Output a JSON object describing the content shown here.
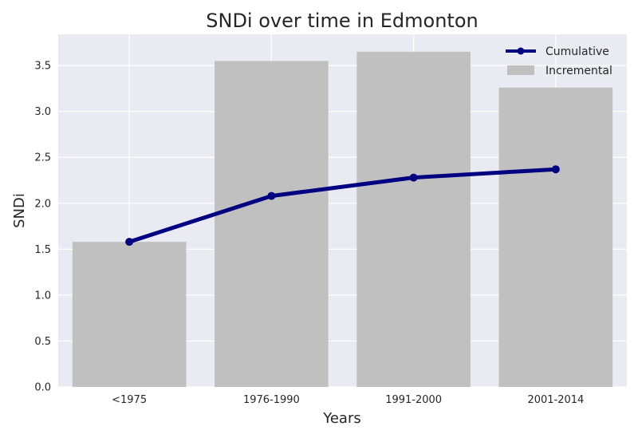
{
  "chart_data": {
    "type": "bar",
    "title": "SNDi over time in Edmonton",
    "xlabel": "Years",
    "ylabel": "SNDi",
    "categories": [
      "<1975",
      "1976-1990",
      "1991-2000",
      "2001-2014"
    ],
    "ylim": [
      0,
      3.84
    ],
    "yticks": [
      "0.0",
      "0.5",
      "1.0",
      "1.5",
      "2.0",
      "2.5",
      "3.0",
      "3.5"
    ],
    "grid": true,
    "legend_position": "top-right",
    "series": [
      {
        "name": "Incremental",
        "type": "bar",
        "color": "#c0c0c0",
        "values": [
          1.58,
          3.55,
          3.65,
          3.26
        ]
      },
      {
        "name": "Cumulative",
        "type": "line",
        "color": "#000080",
        "marker": "circle",
        "values": [
          1.58,
          2.08,
          2.28,
          2.37
        ]
      }
    ],
    "colors": {
      "plot_background": "#eaeaf2",
      "gridline": "#ffffff",
      "text": "#262626"
    }
  }
}
